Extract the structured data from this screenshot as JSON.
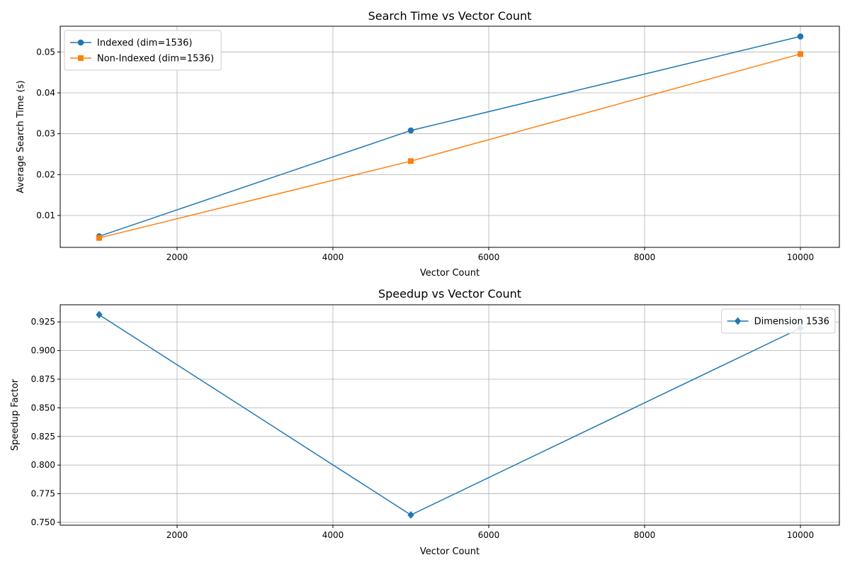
{
  "chart_data": [
    {
      "type": "line",
      "title": "Search Time vs Vector Count",
      "xlabel": "Vector Count",
      "ylabel": "Average Search Time (s)",
      "xlim": [
        500,
        10500
      ],
      "ylim": [
        0.0022,
        0.0563
      ],
      "xticks": [
        2000,
        4000,
        6000,
        8000,
        10000
      ],
      "yticks": [
        0.01,
        0.02,
        0.03,
        0.04,
        0.05
      ],
      "grid": true,
      "legend": "top-left",
      "series": [
        {
          "name": "Indexed (dim=1536)",
          "marker": "circle",
          "color": "#1f77b4",
          "x": [
            1000,
            5000,
            10000
          ],
          "y": [
            0.0049,
            0.0308,
            0.0538
          ]
        },
        {
          "name": "Non-Indexed (dim=1536)",
          "marker": "square",
          "color": "#ff7f0e",
          "x": [
            1000,
            5000,
            10000
          ],
          "y": [
            0.0045,
            0.0233,
            0.0495
          ]
        }
      ]
    },
    {
      "type": "line",
      "title": "Speedup vs Vector Count",
      "xlabel": "Vector Count",
      "ylabel": "Speedup Factor",
      "xlim": [
        500,
        10500
      ],
      "ylim": [
        0.7475,
        0.94
      ],
      "xticks": [
        2000,
        4000,
        6000,
        8000,
        10000
      ],
      "yticks": [
        0.75,
        0.775,
        0.8,
        0.825,
        0.85,
        0.875,
        0.9,
        0.925
      ],
      "grid": true,
      "legend": "top-right",
      "series": [
        {
          "name": "Dimension 1536",
          "marker": "diamond",
          "color": "#1f77b4",
          "x": [
            1000,
            5000,
            10000
          ],
          "y": [
            0.9313,
            0.7565,
            0.9196
          ]
        }
      ]
    }
  ]
}
